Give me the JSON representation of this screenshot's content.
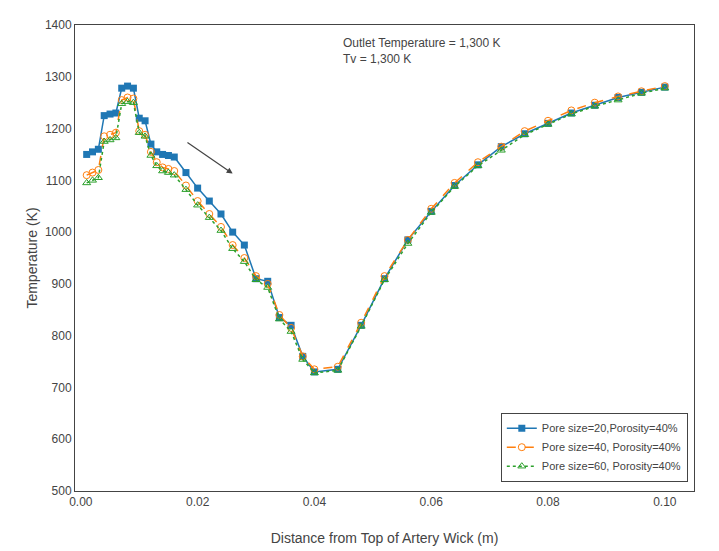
{
  "chart_data": {
    "type": "line",
    "x_label": "Distance from Top of Artery Wick (m)",
    "y_label": "Temperature (K)",
    "xlim": [
      -0.001,
      0.105
    ],
    "ylim": [
      500,
      1400
    ],
    "xticks": [
      {
        "value": 0.0,
        "label": "0.00"
      },
      0.02,
      0.04,
      0.06,
      0.08,
      {
        "value": 0.1,
        "label": "0.10"
      }
    ],
    "yticks": [
      500,
      600,
      700,
      800,
      900,
      1000,
      1100,
      1200,
      1300,
      1400
    ],
    "grid": false,
    "legend": "lower right",
    "annotations": [
      {
        "text": "Outlet Temperature = 1,300 K\nTv = 1,300 K"
      },
      {
        "arrow_from": [
          0.018,
          1175
        ],
        "arrow_to": [
          0.026,
          1113
        ]
      }
    ],
    "x": [
      0.001,
      0.002,
      0.003,
      0.004,
      0.005,
      0.006,
      0.007,
      0.008,
      0.009,
      0.01,
      0.011,
      0.012,
      0.013,
      0.014,
      0.015,
      0.016,
      0.018,
      0.02,
      0.022,
      0.024,
      0.026,
      0.028,
      0.03,
      0.032,
      0.034,
      0.036,
      0.038,
      0.04,
      0.044,
      0.048,
      0.052,
      0.056,
      0.06,
      0.064,
      0.068,
      0.072,
      0.076,
      0.08,
      0.084,
      0.088,
      0.092,
      0.096,
      0.1
    ],
    "series": [
      {
        "name": "Pore size=20,Porosity=40%",
        "marker": "square",
        "line_style": "solid",
        "values": [
          1150,
          1155,
          1160,
          1225,
          1228,
          1230,
          1278,
          1282,
          1278,
          1220,
          1215,
          1170,
          1155,
          1150,
          1148,
          1145,
          1115,
          1085,
          1060,
          1035,
          1000,
          975,
          910,
          905,
          835,
          820,
          760,
          730,
          735,
          820,
          910,
          985,
          1040,
          1090,
          1130,
          1165,
          1190,
          1210,
          1230,
          1245,
          1260,
          1270,
          1280
        ]
      },
      {
        "name": "Pore size=40, Porosity=40%",
        "marker": "circle-open",
        "line_style": "dash",
        "values": [
          1110,
          1115,
          1120,
          1185,
          1188,
          1192,
          1255,
          1260,
          1258,
          1195,
          1188,
          1155,
          1135,
          1125,
          1122,
          1118,
          1090,
          1060,
          1035,
          1010,
          975,
          950,
          915,
          900,
          840,
          815,
          760,
          735,
          740,
          825,
          915,
          985,
          1045,
          1095,
          1135,
          1165,
          1195,
          1215,
          1235,
          1250,
          1262,
          1272,
          1282
        ]
      },
      {
        "name": "Pore size=60, Porosity=40%",
        "marker": "triangle-up-open",
        "line_style": "dot",
        "values": [
          1095,
          1100,
          1105,
          1175,
          1178,
          1182,
          1248,
          1252,
          1250,
          1192,
          1185,
          1148,
          1128,
          1118,
          1115,
          1110,
          1082,
          1052,
          1028,
          1003,
          968,
          943,
          908,
          893,
          832,
          808,
          754,
          728,
          733,
          818,
          908,
          978,
          1038,
          1088,
          1128,
          1158,
          1188,
          1208,
          1228,
          1243,
          1255,
          1268,
          1278
        ]
      }
    ]
  }
}
